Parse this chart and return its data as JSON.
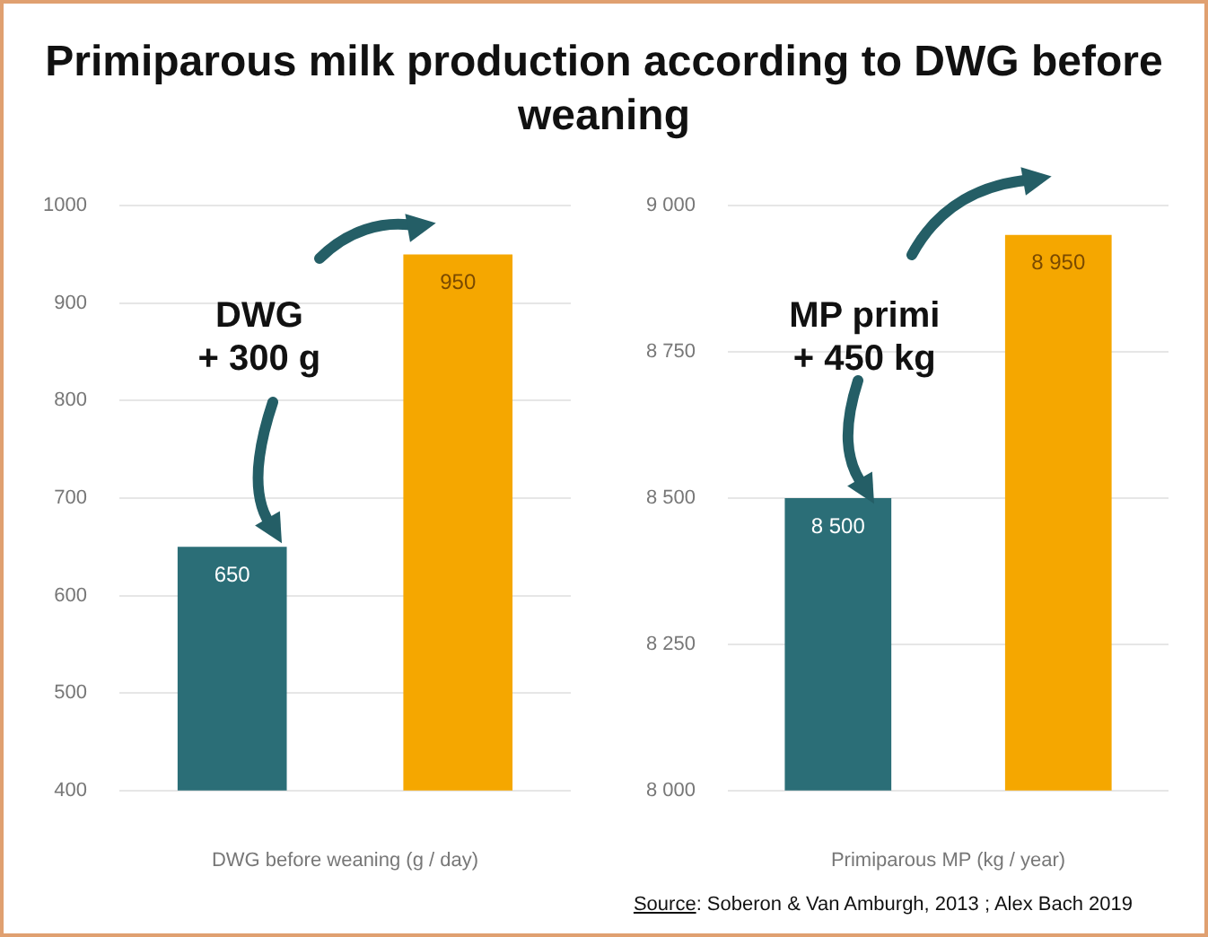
{
  "chart_data": [
    {
      "type": "bar",
      "title": "Primiparous milk production according to DWG before weaning",
      "categories": [
        null,
        null
      ],
      "xlabel": "DWG before weaning (g / day)",
      "values": [
        650,
        950
      ],
      "colors": [
        "#2b6e77",
        "#f5a700"
      ],
      "value_labels": [
        "650",
        "950"
      ],
      "ylim": [
        400,
        1000
      ],
      "yticks": [
        400,
        500,
        600,
        700,
        800,
        900,
        1000
      ],
      "grid": "y",
      "legend": false,
      "annotations": [
        "DWG\n+ 300 g"
      ]
    },
    {
      "type": "bar",
      "categories": [
        null,
        null
      ],
      "xlabel": "Primiparous MP (kg / year)",
      "values": [
        8500,
        8950
      ],
      "colors": [
        "#2b6e77",
        "#f5a700"
      ],
      "value_labels": [
        "8 500",
        "8 950"
      ],
      "ylim": [
        8000,
        9000
      ],
      "yticks": [
        {
          "value": 8000,
          "label": "8 000"
        },
        {
          "value": 8250,
          "label": "8 250"
        },
        {
          "value": 8500,
          "label": "8 500"
        },
        {
          "value": 8750,
          "label": "8 750"
        },
        {
          "value": 9000,
          "label": "9 000"
        }
      ],
      "grid": "y",
      "legend": false,
      "annotations": [
        "MP primi\n+ 450 kg",
        "Source: Soberon & Van Amburgh, 2013 ; Alex Bach 2019"
      ]
    }
  ]
}
